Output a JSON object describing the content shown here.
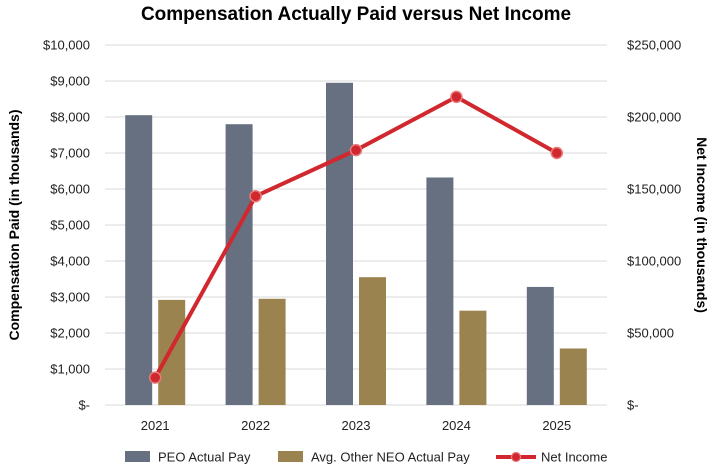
{
  "chart_data": {
    "type": "bar",
    "title": "Compensation Actually Paid versus Net Income",
    "categories": [
      "2021",
      "2022",
      "2023",
      "2024",
      "2025"
    ],
    "series": [
      {
        "name": "PEO Actual Pay",
        "type": "bar",
        "axis": "left",
        "color": "#667080",
        "values": [
          8050,
          7800,
          8950,
          6320,
          3280
        ]
      },
      {
        "name": "Avg. Other NEO Actual Pay",
        "type": "bar",
        "axis": "left",
        "color": "#9a834e",
        "values": [
          2920,
          2950,
          3550,
          2620,
          1570
        ]
      },
      {
        "name": "Net Income",
        "type": "line",
        "axis": "right",
        "color": "#d0282e",
        "values": [
          19000,
          145000,
          177000,
          214000,
          175000
        ]
      }
    ],
    "ylabel": "Compensation Paid (in thousands)",
    "y2label": "Net Income (in thousands)",
    "ylim": [
      0,
      10000
    ],
    "y2lim": [
      0,
      250000
    ],
    "y_ticks": [
      {
        "value": 0,
        "label": "$-"
      },
      {
        "value": 1000,
        "label": "$1,000"
      },
      {
        "value": 2000,
        "label": "$2,000"
      },
      {
        "value": 3000,
        "label": "$3,000"
      },
      {
        "value": 4000,
        "label": "$4,000"
      },
      {
        "value": 5000,
        "label": "$5,000"
      },
      {
        "value": 6000,
        "label": "$6,000"
      },
      {
        "value": 7000,
        "label": "$7,000"
      },
      {
        "value": 8000,
        "label": "$8,000"
      },
      {
        "value": 9000,
        "label": "$9,000"
      },
      {
        "value": 10000,
        "label": "$10,000"
      }
    ],
    "y2_ticks": [
      {
        "value": 0,
        "label": "$-"
      },
      {
        "value": 50000,
        "label": "$50,000"
      },
      {
        "value": 100000,
        "label": "$100,000"
      },
      {
        "value": 150000,
        "label": "$150,000"
      },
      {
        "value": 200000,
        "label": "$200,000"
      },
      {
        "value": 250000,
        "label": "$250,000"
      }
    ],
    "grid": true,
    "legend_position": "bottom"
  }
}
